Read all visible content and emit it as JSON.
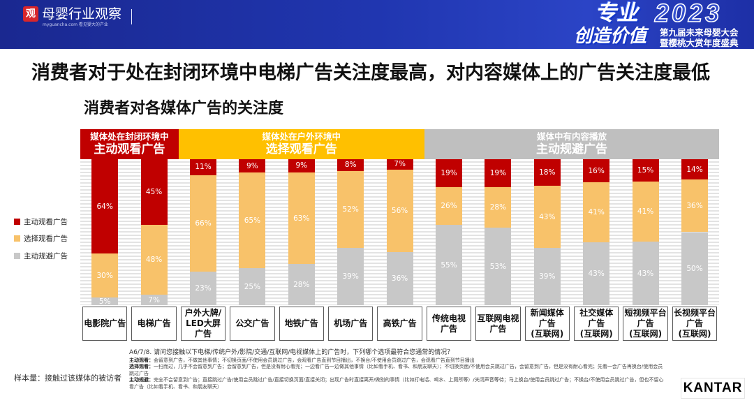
{
  "header": {
    "logo_mark": "观",
    "site_name": "母婴行业观察",
    "site_tagline": "myguancha.com 看见婴大的产业",
    "event_word1": "专业",
    "event_year": "2023",
    "event_word2": "创造价值",
    "event_title": "第九届未来母婴大会",
    "event_subtitle": "暨樱桃大赏年度盛典",
    "brand_color": "#1f2f9e"
  },
  "slide_title": "消费者对于处在封闭环境中电梯广告关注度最高，对内容媒体上的广告关注度最低",
  "chart_data": {
    "type": "bar",
    "stacked": true,
    "title": "消费者对各媒体广告的关注度",
    "unit": "%",
    "legend": "left",
    "categories": [
      "电影院广告",
      "电梯广告",
      "户外大牌/\nLED大屏\n广告",
      "公交广告",
      "地铁广告",
      "机场广告",
      "高铁广告",
      "传统电视\n广告",
      "互联网电视\n广告",
      "新闻媒体\n广告\n(互联网)",
      "社交媒体\n广告\n(互联网)",
      "短视频平台\n广告\n(互联网)",
      "长视频平台\n广告\n(互联网)"
    ],
    "series": [
      {
        "name": "主动观看广告",
        "color": "#C00000",
        "values": [
          64,
          45,
          11,
          9,
          9,
          8,
          7,
          19,
          19,
          18,
          16,
          15,
          14
        ]
      },
      {
        "name": "选择观看广告",
        "color": "#F8C26A",
        "values": [
          30,
          48,
          66,
          65,
          63,
          52,
          56,
          26,
          28,
          43,
          41,
          41,
          36
        ]
      },
      {
        "name": "主动规避广告",
        "color": "#C8C8C8",
        "values": [
          5,
          7,
          23,
          25,
          28,
          39,
          36,
          55,
          53,
          39,
          43,
          43,
          50
        ]
      }
    ],
    "groups": [
      {
        "line1": "媒体处在封闭环境中",
        "line2": "主动观看广告",
        "color": "#C00000",
        "first": 0,
        "last": 1
      },
      {
        "line1": "媒体处在户外环境中",
        "line2": "选择观看广告",
        "color": "#FFC000",
        "first": 2,
        "last": 6
      },
      {
        "line1": "媒体中有内容播放",
        "line2": "主动规避广告",
        "color": "#BFBFBF",
        "first": 7,
        "last": 12
      }
    ]
  },
  "footnote": {
    "question": "A6/7/8. 请问您接触以下电梯/传统户外/影院/交通/互联网/电视媒体上的广告时，下列哪个选项最符合您通常的情况？",
    "definitions": [
      {
        "term": "主动观看：",
        "text": "会留意到广告，不做其他事情；不切换页面/不使用会员跳过广告，会观看广告直到节目播出，不换台/不使用会员跳过广告，会观看广告直到节目播出"
      },
      {
        "term": "选择观看：",
        "text": "一扫而过，几乎不会留意到广告；会留意到广告，但是没有耐心看完；一边看广告一边做其他事情（比如看手机、看书、和朋友聊天）；不切换页面/不使用会员跳过广告，会留意到广告，但是没有耐心看完；先看一会广告再换台/使用会员跳过广告"
      },
      {
        "term": "主动规避：",
        "text": "完全不会留意到广告；直接跳过广告/使用会员跳过广告/直接切换页面/直接关闭；出现广告时直接离开/做别的事情（比如打电话、喝水、上厕所等）/关闭声音等待；马上换台/使用会员跳过广告；不换台/不使用会员跳过广告，但也不留心看广告（比如看手机、看书、和朋友聊天）"
      }
    ],
    "sample": "样本量：接触过该媒体的被访者"
  },
  "source_logo": "KANTAR"
}
